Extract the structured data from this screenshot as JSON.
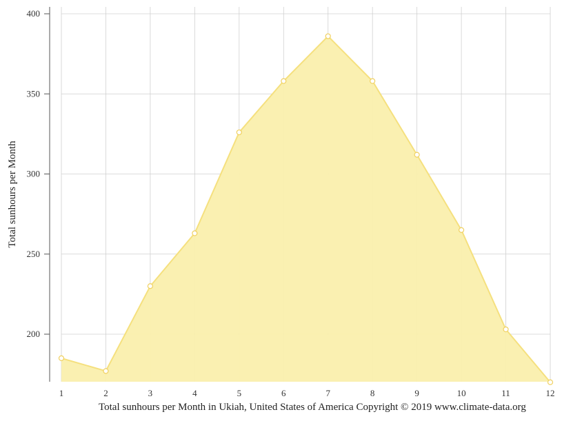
{
  "chart_data": {
    "type": "area",
    "x": [
      1,
      2,
      3,
      4,
      5,
      6,
      7,
      8,
      9,
      10,
      11,
      12
    ],
    "x_tick_labels": [
      "1",
      "2",
      "3",
      "4",
      "5",
      "6",
      "7",
      "8",
      "9",
      "10",
      "11",
      "12"
    ],
    "series": [
      {
        "values": [
          185,
          177,
          230,
          263,
          326,
          358,
          386,
          358,
          312,
          265,
          203,
          170
        ]
      }
    ],
    "ylabel": "Total sunhours per Month",
    "xlabel": "",
    "ylim": [
      170,
      404
    ],
    "xlim": [
      1,
      12
    ],
    "y_ticks": [
      200,
      250,
      300,
      350,
      400
    ],
    "y_tick_labels": [
      "200",
      "250",
      "300",
      "350",
      "400"
    ],
    "grid": true,
    "colors": {
      "fill": "#faefad",
      "line": "#f5e07e",
      "marker_fill": "#ffffff",
      "marker_stroke": "#f0d060",
      "grid": "#d0d0d0",
      "axis": "#555555"
    }
  },
  "caption": "Total sunhours per Month in Ukiah, United States of America Copyright © 2019 www.climate-data.org"
}
